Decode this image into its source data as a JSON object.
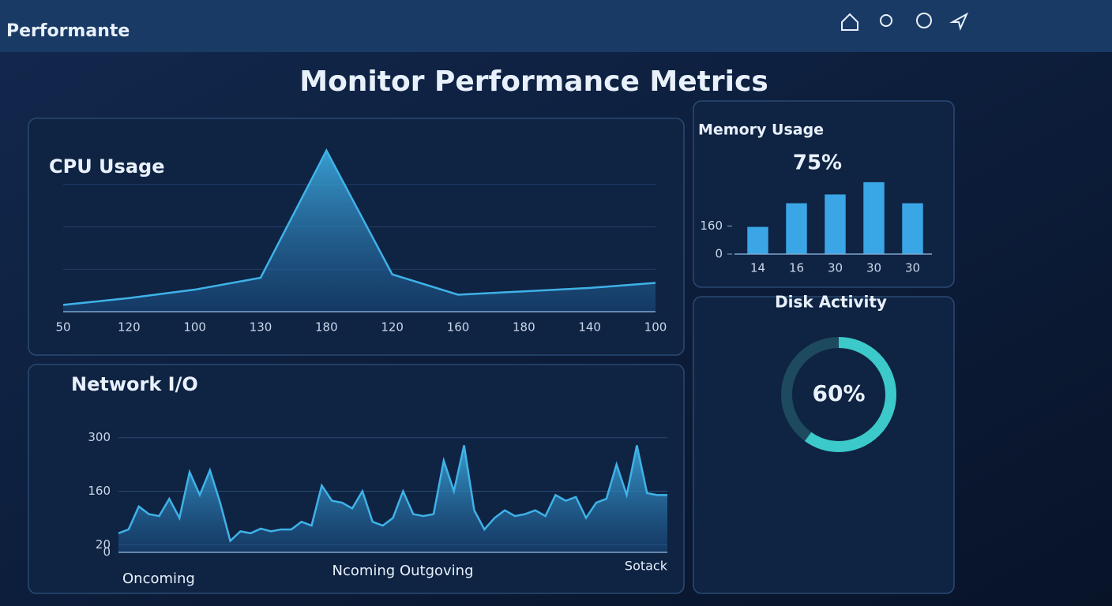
{
  "header": {
    "title": "Performante"
  },
  "title": "Monitor Performance Metrics",
  "chart_data": [
    {
      "type": "area",
      "title": "CPU Usage",
      "color": "#3fb2e8",
      "categories": [
        "50",
        "120",
        "100",
        "130",
        "180",
        "120",
        "160",
        "180",
        "140",
        "100"
      ],
      "values": [
        4,
        8,
        13,
        20,
        95,
        22,
        10,
        12,
        14,
        17
      ],
      "ylim": [
        0,
        100
      ]
    },
    {
      "type": "area",
      "title": "Network I/O",
      "color": "#3fb2e8",
      "values": [
        50,
        60,
        120,
        100,
        95,
        140,
        90,
        210,
        150,
        215,
        130,
        30,
        55,
        50,
        62,
        55,
        60,
        60,
        80,
        70,
        175,
        135,
        130,
        115,
        160,
        80,
        70,
        90,
        160,
        100,
        95,
        100,
        240,
        160,
        280,
        110,
        60,
        90,
        110,
        95,
        100,
        110,
        95,
        150,
        135,
        145,
        90,
        130,
        140,
        230,
        150,
        280,
        155,
        150,
        150
      ],
      "ylim": [
        0,
        320
      ],
      "yticks": [
        0,
        20,
        160,
        300
      ],
      "xlabel": "Ncoming Outgoving",
      "annotations": [
        "Oncoming",
        "Sotack"
      ]
    },
    {
      "type": "bar",
      "title": "Memory Usage",
      "subtitle": "75%",
      "color": "#3aa6e6",
      "categories": [
        "14",
        "16",
        "30",
        "30",
        "30"
      ],
      "values": [
        155,
        290,
        340,
        410,
        290
      ],
      "ylim": [
        0,
        450
      ],
      "yticks": [
        0,
        160
      ]
    },
    {
      "type": "gauge",
      "title": "Disk Activity",
      "color": "#3cc9c9",
      "value": 60,
      "value_label": "60%",
      "ylim": [
        0,
        100
      ]
    }
  ]
}
